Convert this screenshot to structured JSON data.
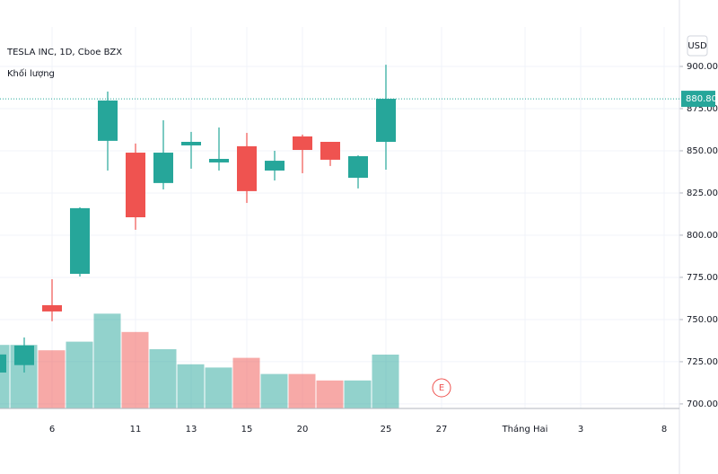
{
  "chart_data": {
    "type": "candlestick",
    "title": "TESLA INC, 1D, Cboe BZX",
    "subtitle": "Khối lượng",
    "currency": "USD",
    "categories": [
      null,
      null,
      "6",
      null,
      null,
      "11",
      null,
      "13",
      null,
      "15",
      null,
      "20",
      null,
      null,
      "25",
      null,
      "27",
      null,
      null,
      "Tháng Hai",
      null,
      "3",
      null,
      null,
      "8"
    ],
    "open": [
      718.6,
      723.0,
      758.5,
      777.1,
      855.9,
      848.9,
      830.9,
      853.2,
      843.1,
      852.7,
      838.3,
      858.5,
      855.3,
      834.0,
      855.3,
      null,
      null,
      null,
      null,
      null,
      null,
      null,
      null,
      null,
      null
    ],
    "high": [
      730.0,
      739.4,
      773.9,
      816.5,
      885.1,
      854.3,
      868.1,
      861.2,
      863.8,
      860.6,
      850.0,
      859.6,
      855.3,
      847.3,
      901.0,
      null,
      null,
      null,
      null,
      null,
      null,
      null,
      null,
      null,
      null
    ],
    "low": [
      718.0,
      718.6,
      749.0,
      775.5,
      838.3,
      803.2,
      827.1,
      839.4,
      838.3,
      819.1,
      832.4,
      836.7,
      841.0,
      827.7,
      838.8,
      null,
      null,
      null,
      null,
      null,
      null,
      null,
      null,
      null,
      null
    ],
    "close": [
      729.3,
      734.6,
      754.8,
      816.0,
      879.8,
      810.6,
      848.9,
      855.3,
      845.2,
      826.1,
      844.1,
      850.5,
      844.7,
      846.8,
      880.8,
      null,
      null,
      null,
      null,
      null,
      null,
      null,
      null,
      null,
      null
    ],
    "volume": [
      59,
      59,
      54,
      62,
      88,
      71,
      55,
      41,
      38,
      47,
      32,
      32,
      26,
      26,
      50,
      null,
      null,
      null,
      null,
      null,
      null,
      null,
      null,
      null,
      null
    ],
    "volume_lim": [
      0,
      100
    ],
    "up_color": "#26a69a",
    "down_color": "#ef5350",
    "ylim": [
      697.3,
      923.4
    ],
    "yticks": [
      {
        "value": 700,
        "label": "700.00"
      },
      {
        "value": 725,
        "label": "725.00"
      },
      {
        "value": 750,
        "label": "750.00"
      },
      {
        "value": 775,
        "label": "775.00"
      },
      {
        "value": 800,
        "label": "800.00"
      },
      {
        "value": 825,
        "label": "825.00"
      },
      {
        "value": 850,
        "label": "850.00"
      },
      {
        "value": 875,
        "label": "875.00"
      },
      {
        "value": 900,
        "label": "900.00"
      }
    ],
    "last_price": {
      "value": 880.8,
      "label": "880.80"
    },
    "earnings_marker": {
      "slot": 16,
      "label": "E"
    },
    "grid": true
  }
}
